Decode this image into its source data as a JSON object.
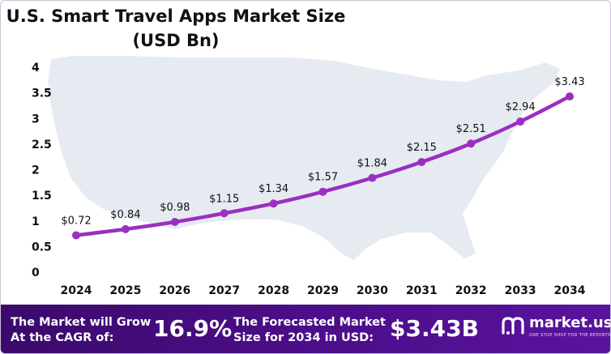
{
  "title_line1": "U.S. Smart Travel Apps Market Size",
  "title_line2": "(USD Bn)",
  "chart_data": {
    "type": "line",
    "title": "U.S. Smart Travel Apps Market Size (USD Bn)",
    "categories": [
      "2024",
      "2025",
      "2026",
      "2027",
      "2028",
      "2029",
      "2030",
      "2031",
      "2032",
      "2033",
      "2034"
    ],
    "values": [
      0.72,
      0.84,
      0.98,
      1.15,
      1.34,
      1.57,
      1.84,
      2.15,
      2.51,
      2.94,
      3.43
    ],
    "data_labels": [
      "$0.72",
      "$0.84",
      "$0.98",
      "$1.15",
      "$1.34",
      "$1.57",
      "$1.84",
      "$2.15",
      "$2.51",
      "$2.94",
      "$3.43"
    ],
    "ylim": [
      0,
      4
    ],
    "yticks": [
      "0",
      "0.5",
      "1",
      "1.5",
      "2",
      "2.5",
      "3",
      "3.5",
      "4"
    ],
    "xlabel": "",
    "ylabel": "",
    "grid": false,
    "line_color": "#9b2fc0"
  },
  "footer": {
    "cagr_label_1": "The Market will Grow",
    "cagr_label_2": "At the CAGR of:",
    "cagr_value": "16.9%",
    "forecast_label_1": "The Forecasted Market",
    "forecast_label_2": "Size for 2034 in USD:",
    "forecast_value": "$3.43B",
    "brand_name": "market.us",
    "brand_tagline": "ONE STOP SHOP FOR THE REPORTS"
  }
}
